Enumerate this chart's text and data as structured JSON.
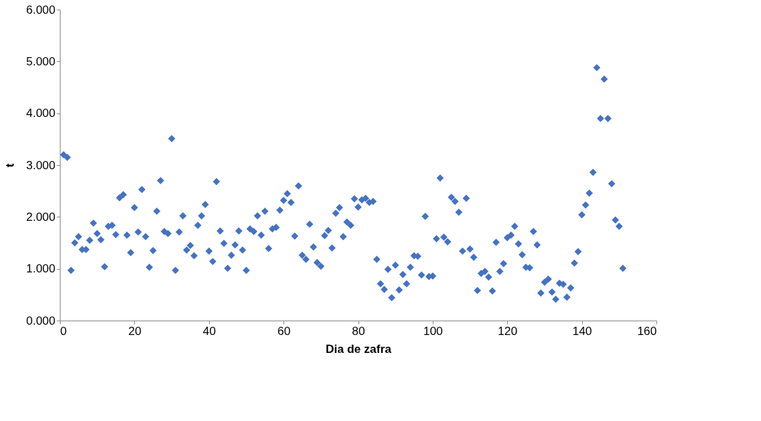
{
  "chart_data": {
    "type": "scatter",
    "xlabel": "Dia de zafra",
    "ylabel": "t",
    "xlim": [
      0,
      160
    ],
    "xticks": [
      0,
      20,
      40,
      60,
      80,
      100,
      120,
      140,
      160
    ],
    "ylim": [
      0,
      6
    ],
    "yticks": [
      {
        "value": 0,
        "label": "0.000"
      },
      {
        "value": 1,
        "label": "1.000"
      },
      {
        "value": 2,
        "label": "2.000"
      },
      {
        "value": 3,
        "label": "3.000"
      },
      {
        "value": 4,
        "label": "4.000"
      },
      {
        "value": 5,
        "label": "5.000"
      },
      {
        "value": 6,
        "label": "6.000"
      }
    ],
    "grid": false,
    "legend": false,
    "marker": "diamond",
    "series": [
      {
        "color": "#4472c4",
        "x": [
          1,
          2,
          3,
          4,
          5,
          6,
          7,
          8,
          9,
          10,
          11,
          12,
          13,
          14,
          15,
          16,
          17,
          18,
          19,
          20,
          21,
          22,
          23,
          24,
          25,
          26,
          27,
          28,
          29,
          30,
          31,
          32,
          33,
          34,
          35,
          36,
          37,
          38,
          39,
          40,
          41,
          42,
          43,
          44,
          45,
          46,
          47,
          48,
          49,
          50,
          51,
          52,
          53,
          54,
          55,
          56,
          57,
          58,
          59,
          60,
          61,
          62,
          63,
          64,
          65,
          66,
          67,
          68,
          69,
          70,
          71,
          72,
          73,
          74,
          75,
          76,
          77,
          78,
          79,
          80,
          81,
          82,
          83,
          84,
          85,
          86,
          87,
          88,
          89,
          90,
          91,
          92,
          93,
          94,
          95,
          96,
          97,
          98,
          99,
          100,
          101,
          102,
          103,
          104,
          105,
          106,
          107,
          108,
          109,
          110,
          111,
          112,
          113,
          114,
          115,
          116,
          117,
          118,
          119,
          120,
          121,
          122,
          123,
          124,
          125,
          126,
          127,
          128,
          129,
          130,
          131,
          132,
          133,
          134,
          135,
          136,
          137,
          138,
          139,
          140,
          141,
          142,
          143,
          144,
          145,
          146,
          147,
          148,
          149,
          150,
          151
        ],
        "values": [
          3.2,
          3.15,
          0.97,
          1.5,
          1.62,
          1.37,
          1.37,
          1.55,
          1.88,
          1.68,
          1.56,
          1.04,
          1.82,
          1.84,
          1.66,
          2.37,
          2.43,
          1.65,
          1.31,
          2.18,
          1.71,
          2.53,
          1.62,
          1.03,
          1.35,
          2.11,
          2.7,
          1.72,
          1.68,
          3.51,
          0.97,
          1.71,
          2.02,
          1.36,
          1.45,
          1.25,
          1.84,
          2.02,
          2.24,
          1.34,
          1.14,
          2.68,
          1.73,
          1.49,
          1.01,
          1.26,
          1.46,
          1.73,
          1.36,
          0.97,
          1.77,
          1.72,
          2.02,
          1.65,
          2.11,
          1.39,
          1.77,
          1.8,
          2.13,
          2.32,
          2.45,
          2.28,
          1.63,
          2.6,
          1.26,
          1.18,
          1.86,
          1.42,
          1.12,
          1.05,
          1.64,
          1.74,
          1.4,
          2.07,
          2.18,
          1.62,
          1.9,
          1.84,
          2.35,
          2.19,
          2.33,
          2.36,
          2.28,
          2.3,
          1.18,
          0.71,
          0.6,
          0.99,
          0.44,
          1.07,
          0.59,
          0.89,
          0.71,
          1.03,
          1.25,
          1.24,
          0.88,
          2.01,
          0.85,
          0.86,
          1.58,
          2.75,
          1.61,
          1.52,
          2.38,
          2.3,
          2.09,
          1.34,
          2.36,
          1.38,
          1.22,
          0.58,
          0.91,
          0.95,
          0.84,
          0.57,
          1.51,
          0.95,
          1.1,
          1.6,
          1.65,
          1.82,
          1.48,
          1.27,
          1.03,
          1.02,
          1.72,
          1.46,
          0.53,
          0.74,
          0.8,
          0.55,
          0.41,
          0.72,
          0.7,
          0.45,
          0.63,
          1.11,
          1.33,
          2.04,
          2.23,
          2.46,
          2.86,
          4.88,
          3.9,
          4.66,
          3.9,
          2.64,
          1.94,
          1.82,
          1.01
        ]
      }
    ]
  }
}
